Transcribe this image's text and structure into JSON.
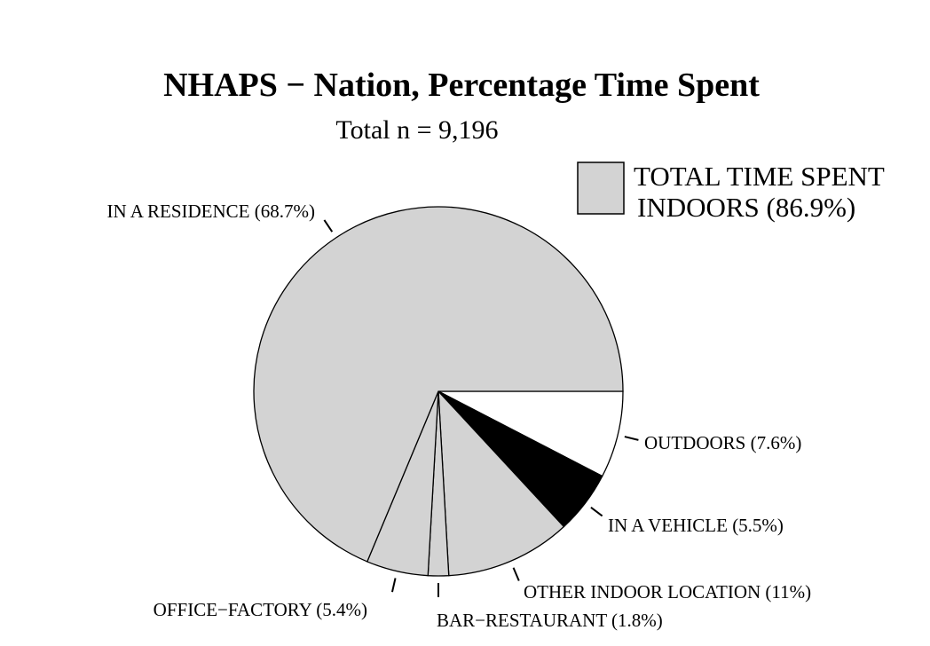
{
  "chart_data": {
    "type": "pie",
    "title": "NHAPS − Nation, Percentage Time Spent",
    "subtitle": "Total n = 9,196",
    "legend": {
      "label_line1": "TOTAL TIME SPENT",
      "label_line2": "INDOORS (86.9%)",
      "color": "#d3d3d3",
      "placement": "top-right"
    },
    "slices": [
      {
        "label": "OUTDOORS (7.6%)",
        "value": 7.6,
        "color": "#ffffff",
        "name": "outdoors"
      },
      {
        "label": "IN A VEHICLE (5.5%)",
        "value": 5.5,
        "color": "#000000",
        "name": "in-a-vehicle"
      },
      {
        "label": "OTHER INDOOR LOCATION (11%)",
        "value": 11.0,
        "color": "#d3d3d3",
        "name": "other-indoor-location"
      },
      {
        "label": "BAR−RESTAURANT (1.8%)",
        "value": 1.8,
        "color": "#d3d3d3",
        "name": "bar-restaurant"
      },
      {
        "label": "OFFICE−FACTORY (5.4%)",
        "value": 5.4,
        "color": "#d3d3d3",
        "name": "office-factory"
      },
      {
        "label": "IN A RESIDENCE (68.7%)",
        "value": 68.7,
        "color": "#d3d3d3",
        "name": "in-a-residence"
      }
    ]
  }
}
